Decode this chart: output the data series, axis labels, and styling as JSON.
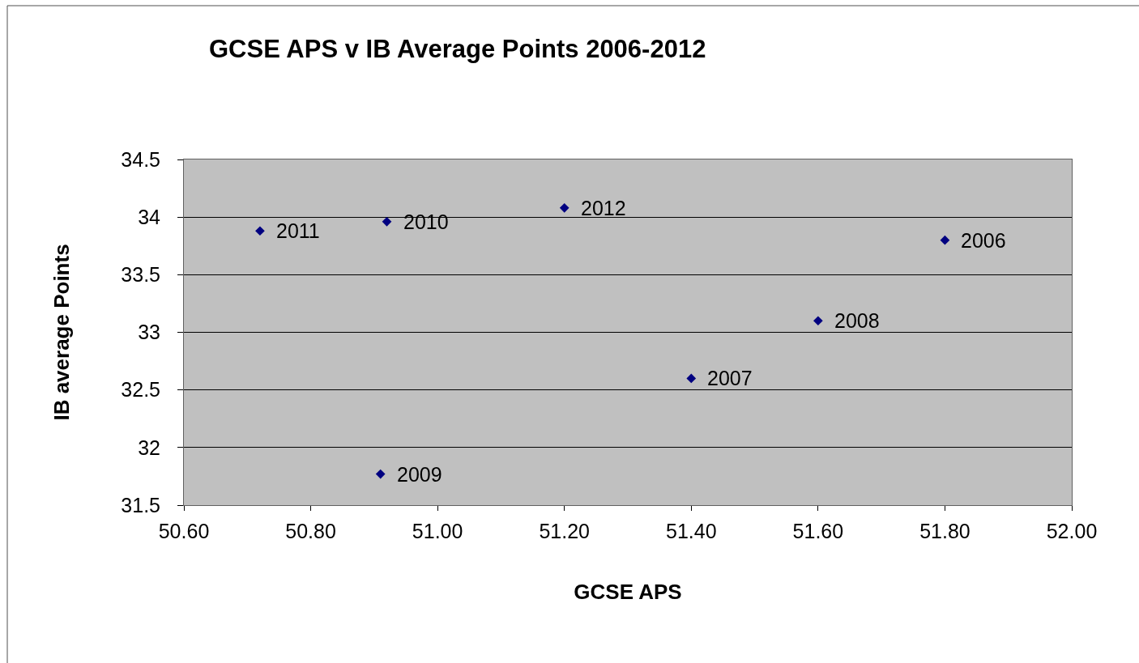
{
  "chart_data": {
    "type": "scatter",
    "title": "GCSE APS v IB Average Points 2006-2012",
    "xlabel": "GCSE APS",
    "ylabel": "IB average Points",
    "x": [
      51.8,
      51.4,
      51.6,
      50.91,
      50.92,
      50.72,
      51.2
    ],
    "series": [
      {
        "color": "#000080",
        "values": [
          33.8,
          32.6,
          33.1,
          31.77,
          33.96,
          33.88,
          34.08
        ]
      }
    ],
    "xlim": [
      50.6,
      52.0
    ],
    "xticks": [
      {
        "value": 50.6,
        "label": "50.60"
      },
      {
        "value": 50.8,
        "label": "50.80"
      },
      {
        "value": 51.0,
        "label": "51.00"
      },
      {
        "value": 51.2,
        "label": "51.20"
      },
      {
        "value": 51.4,
        "label": "51.40"
      },
      {
        "value": 51.6,
        "label": "51.60"
      },
      {
        "value": 51.8,
        "label": "51.80"
      },
      {
        "value": 52.0,
        "label": "52.00"
      }
    ],
    "ylim": [
      31.5,
      34.5
    ],
    "yticks": [
      31.5,
      32,
      32.5,
      33,
      33.5,
      34,
      34.5
    ],
    "grid": "y",
    "marker": "diamond",
    "annotations": [
      {
        "text": "2006",
        "x": 51.8,
        "y": 33.8
      },
      {
        "text": "2007",
        "x": 51.4,
        "y": 32.6
      },
      {
        "text": "2008",
        "x": 51.6,
        "y": 33.1
      },
      {
        "text": "2009",
        "x": 50.91,
        "y": 31.77
      },
      {
        "text": "2010",
        "x": 50.92,
        "y": 33.96
      },
      {
        "text": "2011",
        "x": 50.72,
        "y": 33.88
      },
      {
        "text": "2012",
        "x": 51.2,
        "y": 34.08
      }
    ]
  }
}
